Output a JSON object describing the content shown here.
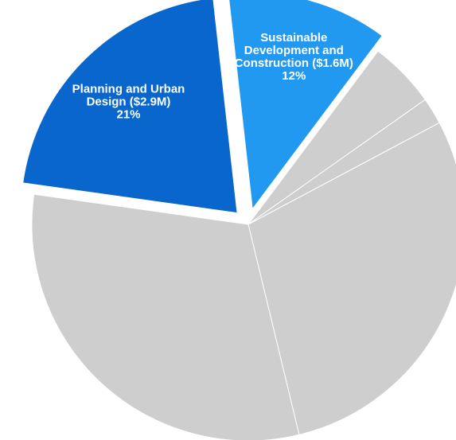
{
  "chart_data": {
    "type": "pie",
    "title": "",
    "slices": [
      {
        "label": "Planning and Urban Design ($2.9M)",
        "label_lines": [
          "Planning and Urban",
          "Design ($2.9M)"
        ],
        "value": 2.9,
        "percent": 21,
        "percent_text": "21%",
        "color": "#0866cc",
        "exploded": true
      },
      {
        "label": "Sustainable Development and Construction ($1.6M)",
        "label_lines": [
          "Sustainable",
          "Development and",
          "Construction ($1.6M)"
        ],
        "value": 1.6,
        "percent": 12,
        "percent_text": "12%",
        "color": "#2199f0",
        "exploded": true
      },
      {
        "label": "",
        "percent": 5,
        "color": "#cfcece",
        "exploded": false
      },
      {
        "label": "",
        "percent": 2,
        "color": "#cfcece",
        "exploded": false
      },
      {
        "label": "",
        "percent": 29,
        "color": "#cfcece",
        "exploded": false
      },
      {
        "label": "",
        "percent": 31,
        "color": "#cfcece",
        "exploded": false
      }
    ]
  }
}
